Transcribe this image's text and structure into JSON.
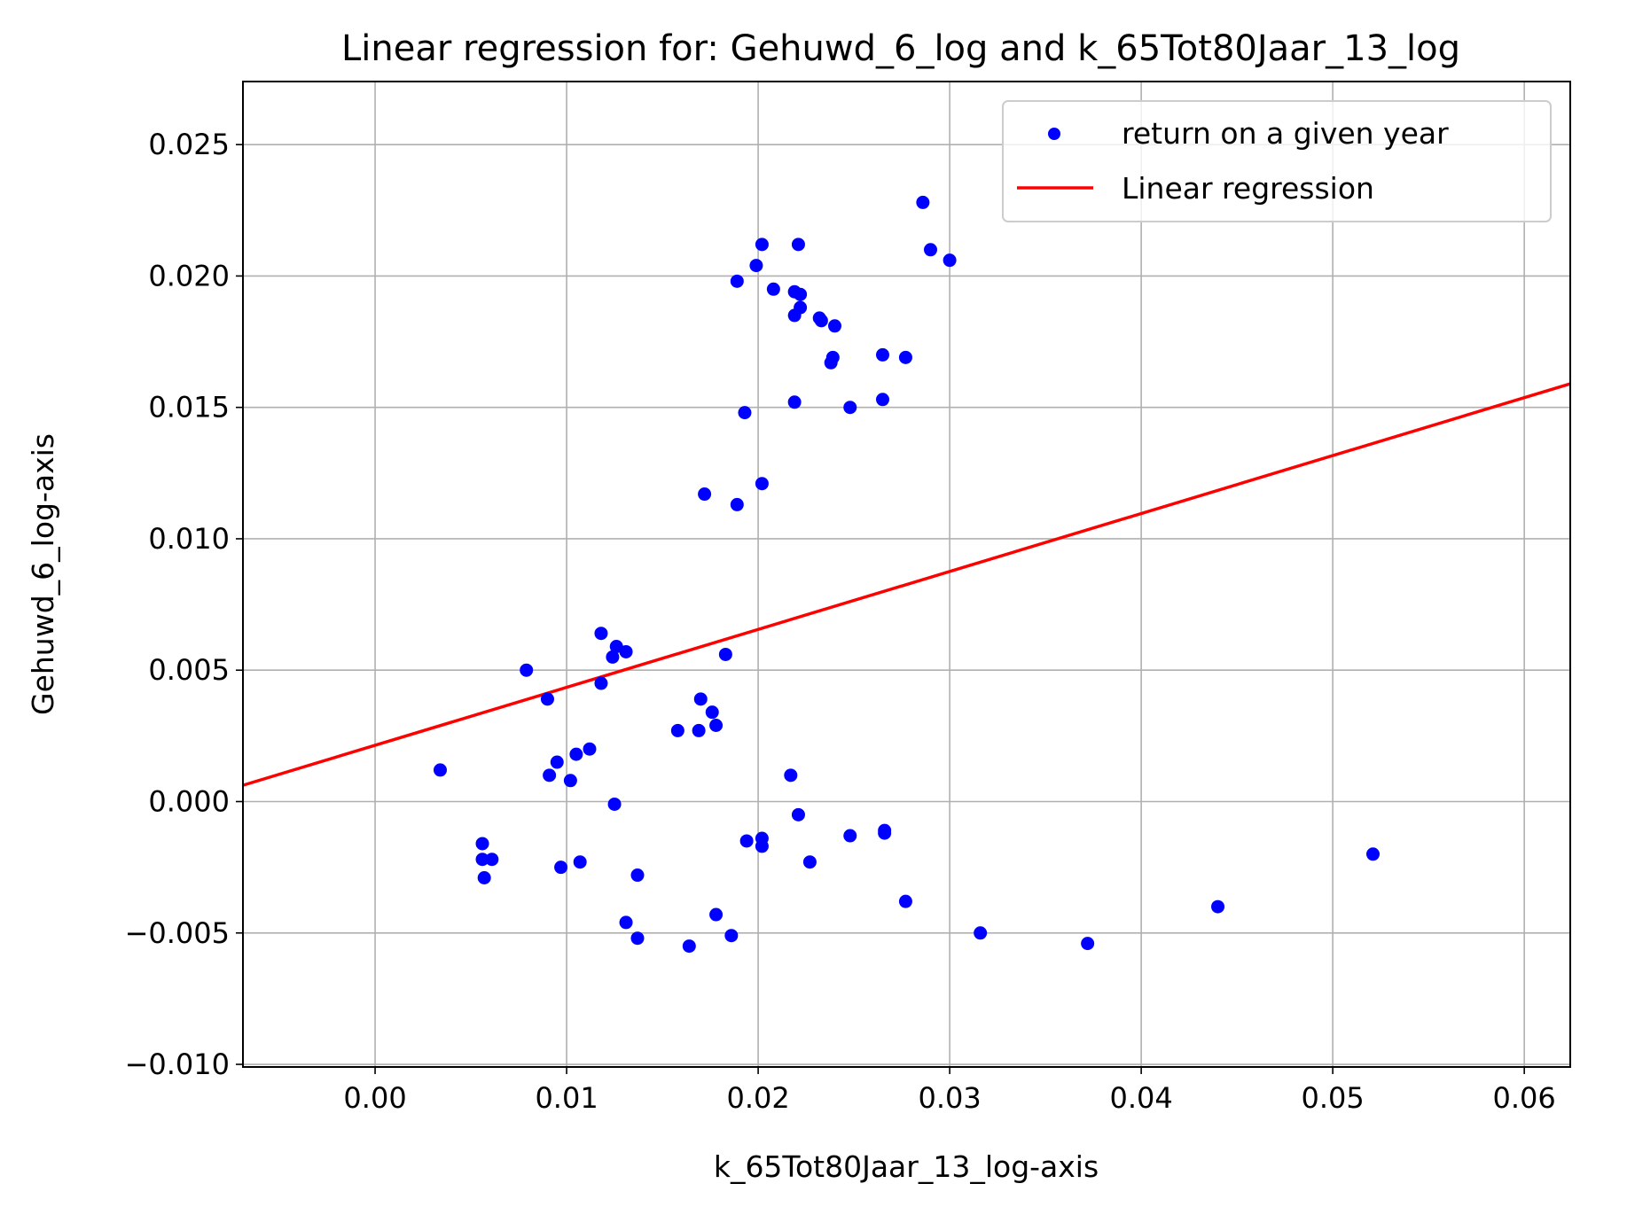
{
  "chart_data": {
    "type": "scatter",
    "title": "Linear regression for: Gehuwd_6_log and k_65Tot80Jaar_13_log",
    "xlabel": "k_65Tot80Jaar_13_log-axis",
    "ylabel": "Gehuwd_6_log-axis",
    "xlim": [
      -0.0069,
      0.0624
    ],
    "ylim": [
      -0.0101,
      0.0274
    ],
    "x_ticks": [
      0.0,
      0.01,
      0.02,
      0.03,
      0.04,
      0.05,
      0.06
    ],
    "x_tick_labels": [
      "0.00",
      "0.01",
      "0.02",
      "0.03",
      "0.04",
      "0.05",
      "0.06"
    ],
    "y_ticks": [
      -0.01,
      -0.005,
      0.0,
      0.005,
      0.01,
      0.015,
      0.02,
      0.025
    ],
    "y_tick_labels": [
      "−0.010",
      "−0.005",
      "0.000",
      "0.005",
      "0.010",
      "0.015",
      "0.020",
      "0.025"
    ],
    "grid": true,
    "legend_position": "top-right",
    "series": [
      {
        "name": "return on a given year",
        "kind": "scatter",
        "color": "#0000ff",
        "points": [
          [
            0.0034,
            0.0012
          ],
          [
            0.0056,
            -0.0016
          ],
          [
            0.0056,
            -0.0022
          ],
          [
            0.0057,
            -0.0029
          ],
          [
            0.0061,
            -0.0022
          ],
          [
            0.0079,
            0.005
          ],
          [
            0.009,
            0.0039
          ],
          [
            0.0091,
            0.001
          ],
          [
            0.0095,
            0.0015
          ],
          [
            0.0097,
            -0.0025
          ],
          [
            0.0102,
            0.0008
          ],
          [
            0.0105,
            0.0018
          ],
          [
            0.0107,
            -0.0023
          ],
          [
            0.0112,
            0.002
          ],
          [
            0.0118,
            0.0064
          ],
          [
            0.0118,
            0.0045
          ],
          [
            0.0124,
            0.0055
          ],
          [
            0.0125,
            -0.0001
          ],
          [
            0.0126,
            0.0059
          ],
          [
            0.0131,
            0.0057
          ],
          [
            0.0131,
            -0.0046
          ],
          [
            0.0137,
            -0.0028
          ],
          [
            0.0137,
            -0.0052
          ],
          [
            0.0158,
            0.0027
          ],
          [
            0.0164,
            -0.0055
          ],
          [
            0.0169,
            0.0027
          ],
          [
            0.017,
            0.0039
          ],
          [
            0.0172,
            0.0117
          ],
          [
            0.0176,
            0.0034
          ],
          [
            0.0178,
            0.0029
          ],
          [
            0.0178,
            -0.0043
          ],
          [
            0.0183,
            0.0056
          ],
          [
            0.0186,
            -0.0051
          ],
          [
            0.0189,
            0.0198
          ],
          [
            0.0189,
            0.0113
          ],
          [
            0.0193,
            0.0148
          ],
          [
            0.0194,
            -0.0015
          ],
          [
            0.0199,
            0.0204
          ],
          [
            0.0202,
            0.0212
          ],
          [
            0.0202,
            0.0121
          ],
          [
            0.0202,
            -0.0014
          ],
          [
            0.0202,
            -0.0017
          ],
          [
            0.0208,
            0.0195
          ],
          [
            0.0217,
            0.001
          ],
          [
            0.0219,
            0.0194
          ],
          [
            0.0219,
            0.0185
          ],
          [
            0.0219,
            0.0152
          ],
          [
            0.0221,
            0.0212
          ],
          [
            0.0221,
            -0.0005
          ],
          [
            0.0222,
            0.0193
          ],
          [
            0.0222,
            0.0188
          ],
          [
            0.0227,
            -0.0023
          ],
          [
            0.0232,
            0.0184
          ],
          [
            0.0233,
            0.0183
          ],
          [
            0.0238,
            0.0167
          ],
          [
            0.0239,
            0.0169
          ],
          [
            0.024,
            0.0181
          ],
          [
            0.0248,
            0.015
          ],
          [
            0.0248,
            -0.0013
          ],
          [
            0.0265,
            0.017
          ],
          [
            0.0265,
            0.0153
          ],
          [
            0.0266,
            -0.0011
          ],
          [
            0.0266,
            -0.0012
          ],
          [
            0.0277,
            0.0169
          ],
          [
            0.0277,
            -0.0038
          ],
          [
            0.0286,
            0.0228
          ],
          [
            0.029,
            0.021
          ],
          [
            0.03,
            0.0206
          ],
          [
            0.0316,
            -0.005
          ],
          [
            0.0372,
            -0.0054
          ],
          [
            0.044,
            -0.004
          ],
          [
            0.0521,
            -0.002
          ]
        ]
      },
      {
        "name": "Linear regression",
        "kind": "line",
        "color": "#ff0000",
        "points": [
          [
            -0.0069,
            0.00062
          ],
          [
            0.0624,
            0.0159
          ]
        ]
      }
    ]
  }
}
